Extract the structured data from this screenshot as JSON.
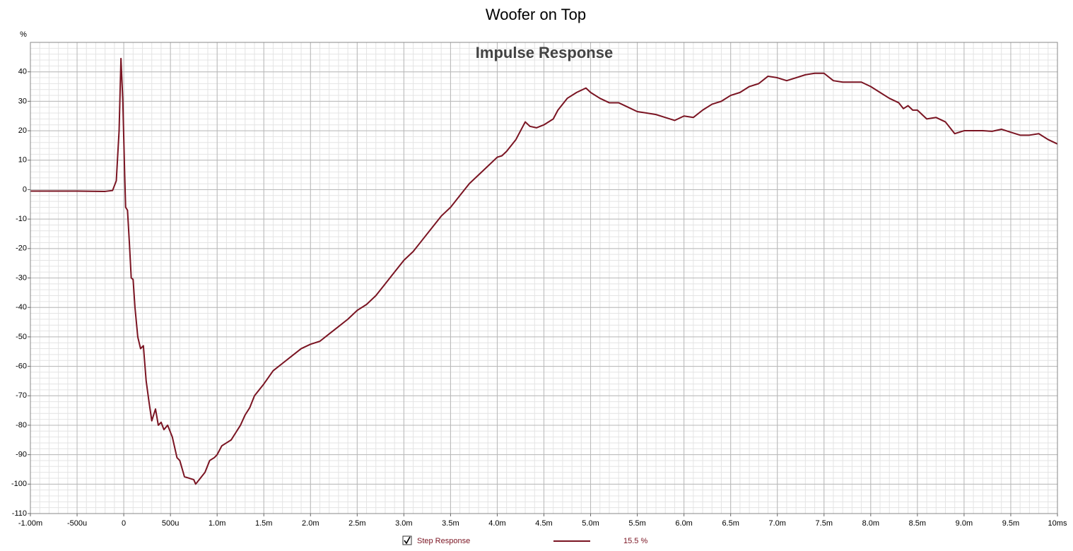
{
  "chart_data": {
    "type": "line",
    "title": "Woofer on Top",
    "subtitle": "Impulse Response",
    "ylabel": "%",
    "xlim": [
      -1,
      10
    ],
    "ylim": [
      -110,
      50
    ],
    "xticks": [
      {
        "value": -1,
        "label": "-1.00m"
      },
      {
        "value": -0.5,
        "label": "-500u"
      },
      0,
      {
        "value": 0.5,
        "label": "500u"
      },
      {
        "value": 1,
        "label": "1.0m"
      },
      {
        "value": 1.5,
        "label": "1.5m"
      },
      {
        "value": 2,
        "label": "2.0m"
      },
      {
        "value": 2.5,
        "label": "2.5m"
      },
      {
        "value": 3,
        "label": "3.0m"
      },
      {
        "value": 3.5,
        "label": "3.5m"
      },
      {
        "value": 4,
        "label": "4.0m"
      },
      {
        "value": 4.5,
        "label": "4.5m"
      },
      {
        "value": 5,
        "label": "5.0m"
      },
      {
        "value": 5.5,
        "label": "5.5m"
      },
      {
        "value": 6,
        "label": "6.0m"
      },
      {
        "value": 6.5,
        "label": "6.5m"
      },
      {
        "value": 7,
        "label": "7.0m"
      },
      {
        "value": 7.5,
        "label": "7.5m"
      },
      {
        "value": 8,
        "label": "8.0m"
      },
      {
        "value": 8.5,
        "label": "8.5m"
      },
      {
        "value": 9,
        "label": "9.0m"
      },
      {
        "value": 9.5,
        "label": "9.5m"
      },
      {
        "value": 10,
        "label": "10ms"
      }
    ],
    "yticks": [
      40,
      30,
      20,
      10,
      0,
      -10,
      -20,
      -30,
      -40,
      -50,
      -60,
      -70,
      -80,
      -90,
      -100,
      -110
    ],
    "grid": true,
    "minor_grid": true,
    "x": [
      -1,
      -0.5,
      -0.2,
      -0.12,
      -0.08,
      -0.05,
      -0.03,
      -0.01,
      0.01,
      0.02,
      0.04,
      0.06,
      0.08,
      0.1,
      0.12,
      0.15,
      0.18,
      0.21,
      0.24,
      0.27,
      0.3,
      0.34,
      0.37,
      0.4,
      0.43,
      0.47,
      0.52,
      0.57,
      0.6,
      0.65,
      0.7,
      0.75,
      0.77,
      0.82,
      0.87,
      0.92,
      0.97,
      1.0,
      1.05,
      1.1,
      1.15,
      1.2,
      1.25,
      1.3,
      1.35,
      1.4,
      1.5,
      1.6,
      1.7,
      1.8,
      1.9,
      2.0,
      2.1,
      2.2,
      2.3,
      2.4,
      2.5,
      2.6,
      2.7,
      2.8,
      2.9,
      3.0,
      3.1,
      3.2,
      3.3,
      3.4,
      3.5,
      3.6,
      3.7,
      3.8,
      3.9,
      4.0,
      4.05,
      4.1,
      4.2,
      4.3,
      4.35,
      4.42,
      4.5,
      4.6,
      4.65,
      4.75,
      4.85,
      4.95,
      5.0,
      5.1,
      5.2,
      5.3,
      5.4,
      5.5,
      5.6,
      5.7,
      5.8,
      5.9,
      6.0,
      6.1,
      6.2,
      6.3,
      6.4,
      6.5,
      6.6,
      6.7,
      6.8,
      6.9,
      7.0,
      7.1,
      7.2,
      7.3,
      7.4,
      7.5,
      7.6,
      7.7,
      7.8,
      7.9,
      8.0,
      8.1,
      8.2,
      8.3,
      8.35,
      8.4,
      8.45,
      8.5,
      8.6,
      8.7,
      8.8,
      8.9,
      9.0,
      9.1,
      9.2,
      9.3,
      9.4,
      9.5,
      9.6,
      9.7,
      9.8,
      9.9,
      10.0
    ],
    "series": [
      {
        "name": "Step Response",
        "legend_value": "15.5 %",
        "color": "#7a1422",
        "values": [
          -0.5,
          -0.5,
          -0.6,
          -0.3,
          3,
          20,
          44.5,
          30,
          5,
          -6,
          -7,
          -18,
          -30,
          -30.5,
          -40,
          -50,
          -54,
          -53,
          -65,
          -72,
          -78.5,
          -74.5,
          -80,
          -79,
          -81.5,
          -80,
          -84,
          -91,
          -92,
          -97.5,
          -98,
          -98.5,
          -100,
          -98,
          -96,
          -92,
          -91,
          -90,
          -87,
          -86,
          -85,
          -82.5,
          -80,
          -76.5,
          -74,
          -70,
          -66,
          -61.5,
          -59,
          -56.5,
          -54,
          -52.5,
          -51.5,
          -49,
          -46.5,
          -44,
          -41,
          -39,
          -36,
          -32,
          -28,
          -24,
          -21,
          -17,
          -13,
          -9,
          -6,
          -2,
          2,
          5,
          8,
          11,
          11.5,
          13,
          17,
          23,
          21.5,
          21,
          22,
          24,
          27,
          31,
          33,
          34.5,
          33,
          31,
          29.5,
          29.5,
          28,
          26.5,
          26,
          25.5,
          24.5,
          23.5,
          25,
          24.5,
          27,
          29,
          30,
          32,
          33,
          35,
          36,
          38.5,
          38,
          37,
          38,
          39,
          39.5,
          39.5,
          37,
          36.5,
          36.5,
          36.5,
          35,
          33,
          31,
          29.5,
          27.5,
          28.5,
          27,
          27,
          24,
          24.5,
          23,
          19,
          20,
          20,
          20,
          19.8,
          20.5,
          19.5,
          18.5,
          18.5,
          19,
          17,
          15.5
        ]
      }
    ]
  }
}
